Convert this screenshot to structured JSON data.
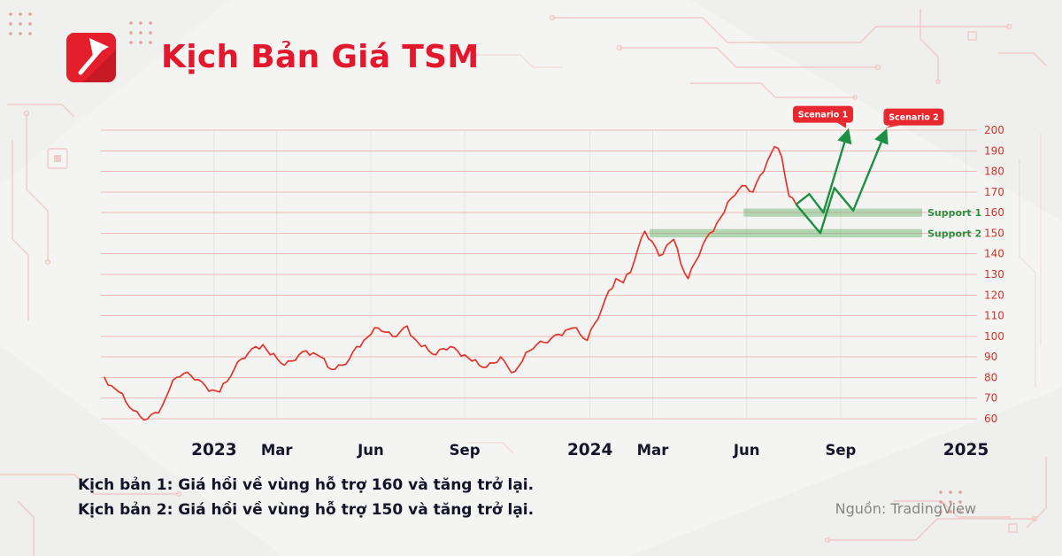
{
  "header": {
    "title": "Kịch Bản Giá TSM"
  },
  "chart_data": {
    "type": "line",
    "symbol": "TSM",
    "title": "Kịch Bản Giá TSM",
    "y_axis": {
      "min": 60,
      "max": 200,
      "step": 10,
      "ticks": [
        200,
        190,
        180,
        170,
        160,
        150,
        140,
        130,
        120,
        110,
        100,
        90,
        80,
        70,
        60
      ]
    },
    "x_ticks": [
      {
        "label": "2023",
        "m": 3.5,
        "year": true
      },
      {
        "label": "Mar",
        "m": 5.5,
        "year": false
      },
      {
        "label": "Jun",
        "m": 8.5,
        "year": false
      },
      {
        "label": "Sep",
        "m": 11.5,
        "year": false
      },
      {
        "label": "2024",
        "m": 15.5,
        "year": true
      },
      {
        "label": "Mar",
        "m": 17.5,
        "year": false
      },
      {
        "label": "Jun",
        "m": 20.5,
        "year": false
      },
      {
        "label": "Sep",
        "m": 23.5,
        "year": false
      },
      {
        "label": "2025",
        "m": 27.5,
        "year": true
      }
    ],
    "series": {
      "name": "TSM price",
      "start": "2022-09",
      "interval_months": 0.23,
      "values": [
        80,
        76,
        73,
        68,
        64,
        61,
        60,
        63,
        66,
        74,
        80,
        82,
        81,
        79,
        76,
        74,
        73,
        78,
        84,
        89,
        92,
        95,
        96,
        91,
        89,
        86,
        88,
        91,
        93,
        92,
        90,
        85,
        84,
        86,
        89,
        95,
        98,
        101,
        104,
        102,
        100,
        102,
        105,
        99,
        95,
        93,
        91,
        94,
        95,
        93,
        91,
        88,
        86,
        85,
        87,
        90,
        85,
        83,
        88,
        93,
        96,
        97,
        99,
        101,
        103,
        104,
        101,
        98,
        106,
        113,
        122,
        128,
        126,
        131,
        142,
        151,
        146,
        139,
        144,
        147,
        135,
        128,
        136,
        144,
        150,
        155,
        160,
        167,
        171,
        173,
        170,
        178,
        185,
        192,
        187,
        168,
        164
      ]
    },
    "supports": [
      {
        "label": "Support 1",
        "price": 160,
        "band": [
          158,
          162
        ],
        "m_start": 20.4,
        "m_end": 26.1
      },
      {
        "label": "Support 2",
        "price": 150,
        "band": [
          148,
          152
        ],
        "m_start": 17.4,
        "m_end": 26.1
      }
    ],
    "scenarios": [
      {
        "label": "Scenario 1",
        "points": [
          [
            22.08,
            164
          ],
          [
            22.5,
            169
          ],
          [
            22.95,
            160
          ],
          [
            23.7,
            198
          ]
        ],
        "badge_dx": -27,
        "badge_dy": -32
      },
      {
        "label": "Scenario 2",
        "points": [
          [
            22.08,
            164
          ],
          [
            22.85,
            150
          ],
          [
            23.3,
            172
          ],
          [
            23.9,
            161
          ],
          [
            24.9,
            198
          ]
        ],
        "badge_dx": 33,
        "badge_dy": -29
      }
    ],
    "colors": {
      "line": "#e5352b",
      "grid": "#f3b9b5",
      "support_fill": "rgba(97,176,99,0.45)",
      "support_text": "#2f8f3e",
      "scenario": "#1d9044",
      "badge": "#e8282f",
      "badge_text": "#ffffff",
      "y_label": "#cf352a",
      "x_label": "#15152b"
    }
  },
  "notes": {
    "line1": "Kịch bản 1: Giá hồi về vùng hỗ trợ 160 và tăng trở lại.",
    "line2": "Kịch bản 2: Giá hồi về vùng hỗ trợ 150 và tăng trở lại."
  },
  "source": "Nguồn: TradingView"
}
